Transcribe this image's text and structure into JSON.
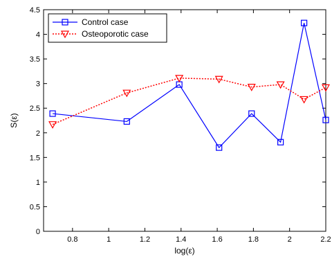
{
  "chart_data": {
    "type": "line",
    "xlabel": "log(ε)",
    "ylabel": "S(ε)",
    "xlim": [
      0.64,
      2.2
    ],
    "ylim": [
      0,
      4.5
    ],
    "xticks": [
      "0.8",
      "1",
      "1.2",
      "1.4",
      "1.6",
      "1.8",
      "2",
      "2.2"
    ],
    "yticks": [
      "0",
      "0.5",
      "1",
      "1.5",
      "2",
      "2.5",
      "3",
      "3.5",
      "4",
      "4.5"
    ],
    "grid": false,
    "legend_position": "top-left",
    "x": [
      0.69,
      1.1,
      1.39,
      1.61,
      1.79,
      1.95,
      2.08,
      2.2
    ],
    "series": [
      {
        "name": "Control case",
        "values": [
          2.39,
          2.23,
          2.98,
          1.7,
          2.39,
          1.81,
          4.23,
          2.26
        ],
        "color": "#0000ff",
        "line_style": "solid",
        "marker": "square"
      },
      {
        "name": "Osteoporotic case",
        "values": [
          2.17,
          2.81,
          3.11,
          3.09,
          2.93,
          2.98,
          2.68,
          2.92
        ],
        "color": "#ff0000",
        "line_style": "dotted",
        "marker": "triangle-down"
      }
    ]
  }
}
